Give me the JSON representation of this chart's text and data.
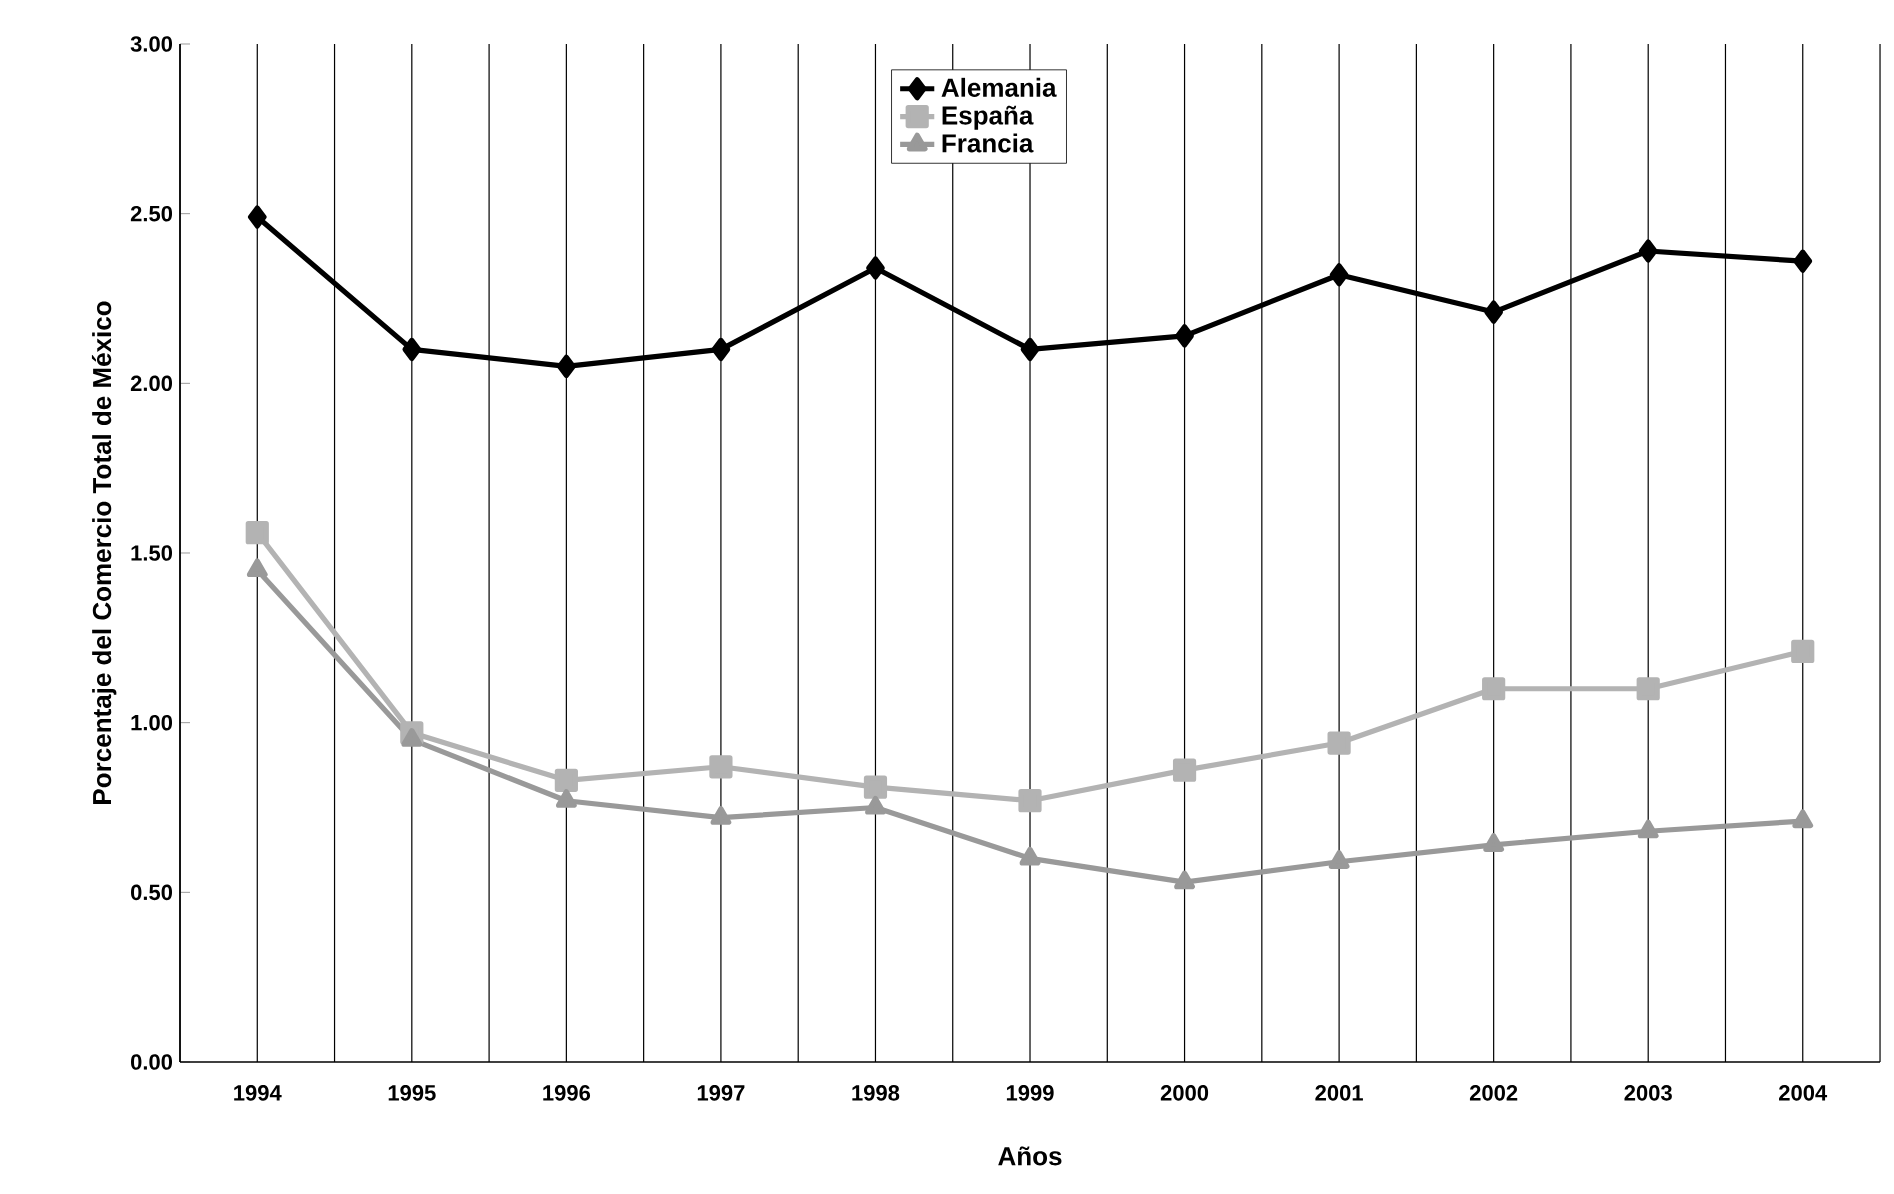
{
  "chart_data": {
    "type": "line",
    "xlabel": "Años",
    "ylabel": "Porcentaje del Comercio Total de México",
    "categories": [
      "1994",
      "1995",
      "1996",
      "1997",
      "1998",
      "1999",
      "2000",
      "2001",
      "2002",
      "2003",
      "2004"
    ],
    "series": [
      {
        "name": "Alemania",
        "color": "#000000",
        "marker": "diamond",
        "values": [
          2.49,
          2.1,
          2.05,
          2.1,
          2.34,
          2.1,
          2.14,
          2.32,
          2.21,
          2.39,
          2.36
        ]
      },
      {
        "name": "España",
        "color": "#b3b3b3",
        "marker": "square",
        "values": [
          1.56,
          0.97,
          0.83,
          0.87,
          0.81,
          0.77,
          0.86,
          0.94,
          1.1,
          1.1,
          1.21
        ]
      },
      {
        "name": "Francia",
        "color": "#999999",
        "marker": "triangle",
        "values": [
          1.45,
          0.95,
          0.77,
          0.72,
          0.75,
          0.6,
          0.53,
          0.59,
          0.64,
          0.68,
          0.71
        ]
      }
    ],
    "ylim": [
      0,
      3
    ],
    "yticks": [
      {
        "value": 0,
        "label": "0.00"
      },
      {
        "value": 0.5,
        "label": "0.50"
      },
      {
        "value": 1,
        "label": "1.00"
      },
      {
        "value": 1.5,
        "label": "1.50"
      },
      {
        "value": 2,
        "label": "2.00"
      },
      {
        "value": 2.5,
        "label": "2.50"
      },
      {
        "value": 3,
        "label": "3.00"
      }
    ],
    "grid": "x",
    "legend": "top",
    "line_style": "solid"
  }
}
